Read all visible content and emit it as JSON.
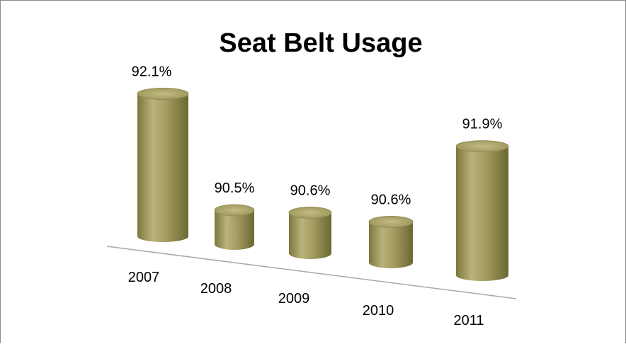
{
  "chart_data": {
    "type": "bar",
    "title": "Seat Belt Usage",
    "categories": [
      "2007",
      "2008",
      "2009",
      "2010",
      "2011"
    ],
    "values": [
      92.1,
      90.5,
      90.6,
      90.6,
      91.9
    ],
    "data_labels": [
      "92.1%",
      "90.5%",
      "90.6%",
      "90.6%",
      "91.9%"
    ],
    "xlabel": "",
    "ylabel": "",
    "ylim": [
      90.0,
      92.5
    ],
    "grid": false,
    "legend": "none",
    "style": "3d-cylinder",
    "colors": {
      "bar_side": "#a19a5f",
      "bar_top": "#b4ad72",
      "axis_line": "#a8a8a8",
      "frame": "#8c8c8c"
    }
  }
}
